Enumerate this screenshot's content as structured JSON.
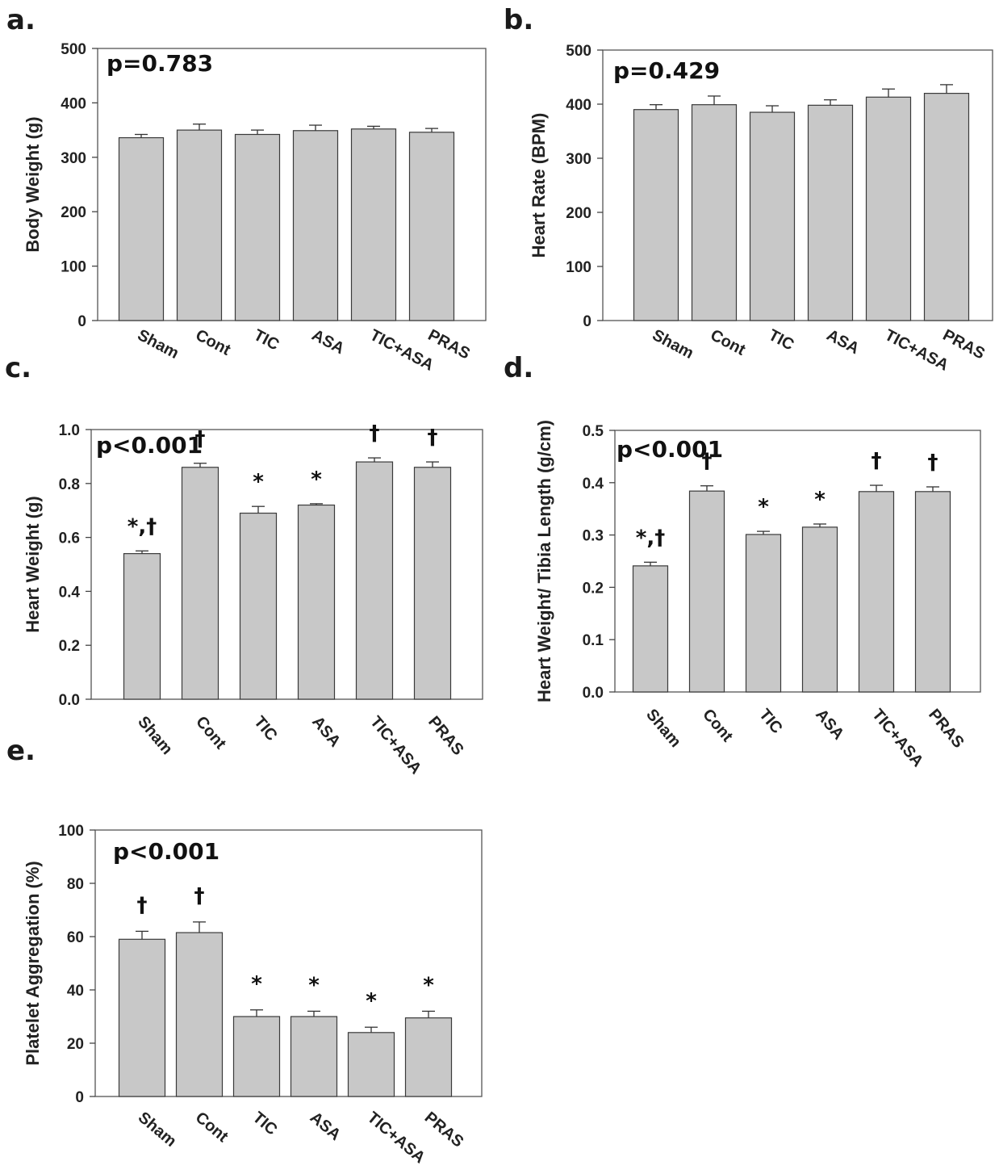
{
  "chart_data": [
    {
      "panel": "a.",
      "type": "bar",
      "ylabel": "Body Weight (g)",
      "annotation": "p=0.783",
      "categories": [
        "Sham",
        "Cont",
        "TIC",
        "ASA",
        "TIC+ASA",
        "PRAS"
      ],
      "values": [
        336,
        350,
        342,
        349,
        352,
        346
      ],
      "errors": [
        6,
        11,
        8,
        10,
        5,
        7
      ],
      "markers": [
        "",
        "",
        "",
        "",
        "",
        ""
      ],
      "ylim": [
        0,
        500
      ],
      "yticks": [
        "0",
        "100",
        "200",
        "300",
        "400",
        "500"
      ]
    },
    {
      "panel": "b.",
      "type": "bar",
      "ylabel": "Heart Rate (BPM)",
      "annotation": "p=0.429",
      "categories": [
        "Sham",
        "Cont",
        "TIC",
        "ASA",
        "TIC+ASA",
        "PRAS"
      ],
      "values": [
        390,
        399,
        385,
        398,
        413,
        420
      ],
      "errors": [
        9,
        16,
        12,
        10,
        15,
        16
      ],
      "markers": [
        "",
        "",
        "",
        "",
        "",
        ""
      ],
      "ylim": [
        0,
        500
      ],
      "yticks": [
        "0",
        "100",
        "200",
        "300",
        "400",
        "500"
      ]
    },
    {
      "panel": "c.",
      "type": "bar",
      "ylabel": "Heart Weight (g)",
      "annotation": "p<0.001",
      "categories": [
        "Sham",
        "Cont",
        "TIC",
        "ASA",
        "TIC+ASA",
        "PRAS"
      ],
      "values": [
        0.54,
        0.86,
        0.69,
        0.72,
        0.88,
        0.86
      ],
      "errors": [
        0.01,
        0.015,
        0.025,
        0.005,
        0.015,
        0.02
      ],
      "markers": [
        "*,†",
        "†",
        "*",
        "*",
        "†",
        "†"
      ],
      "ylim": [
        0,
        1.0
      ],
      "yticks": [
        "0.0",
        "0.2",
        "0.4",
        "0.6",
        "0.8",
        "1.0"
      ]
    },
    {
      "panel": "d.",
      "type": "bar",
      "ylabel": "Heart Weight/ Tibia Length (g/cm)",
      "annotation": "p<0.001",
      "categories": [
        "Sham",
        "Cont",
        "TIC",
        "ASA",
        "TIC+ASA",
        "PRAS"
      ],
      "values": [
        0.241,
        0.384,
        0.301,
        0.315,
        0.383,
        0.383
      ],
      "errors": [
        0.007,
        0.01,
        0.006,
        0.006,
        0.012,
        0.009
      ],
      "markers": [
        "*,†",
        "†",
        "*",
        "*",
        "†",
        "†"
      ],
      "ylim": [
        0,
        0.5
      ],
      "yticks": [
        "0.0",
        "0.1",
        "0.2",
        "0.3",
        "0.4",
        "0.5"
      ]
    },
    {
      "panel": "e.",
      "type": "bar",
      "ylabel": "Platelet Aggregation (%)",
      "annotation": "p<0.001",
      "categories": [
        "Sham",
        "Cont",
        "TIC",
        "ASA",
        "TIC+ASA",
        "PRAS"
      ],
      "values": [
        59,
        61.5,
        30,
        30,
        24,
        29.5
      ],
      "errors": [
        3,
        4,
        2.5,
        2,
        2,
        2.5
      ],
      "markers": [
        "†",
        "†",
        "*",
        "*",
        "*",
        "*"
      ],
      "ylim": [
        0,
        100
      ],
      "yticks": [
        "0",
        "20",
        "40",
        "60",
        "80",
        "100"
      ]
    }
  ]
}
